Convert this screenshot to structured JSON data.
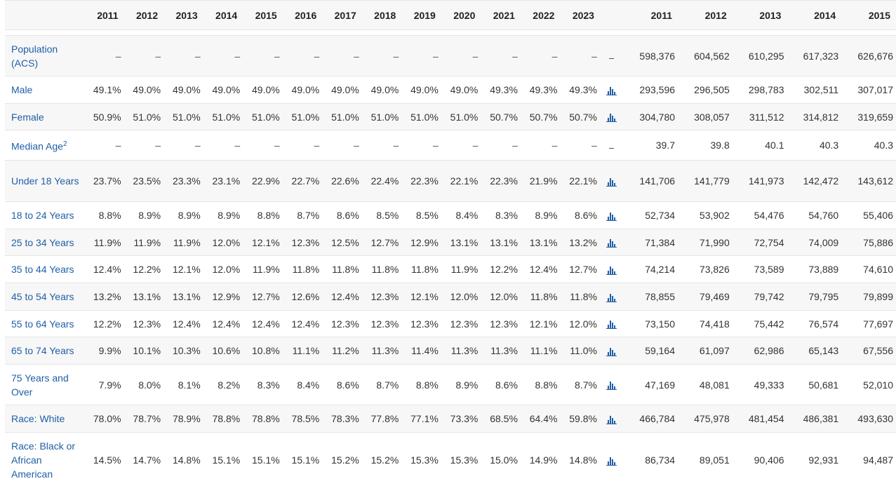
{
  "header": {
    "pct_years": [
      "2011",
      "2012",
      "2013",
      "2014",
      "2015",
      "2016",
      "2017",
      "2018",
      "2019",
      "2020",
      "2021",
      "2022",
      "2023"
    ],
    "abs_years": [
      "2011",
      "2012",
      "2013",
      "2014",
      "2015"
    ]
  },
  "rows": [
    {
      "label": "Population (ACS)",
      "sup": "",
      "pct": [
        "–",
        "–",
        "–",
        "–",
        "–",
        "–",
        "–",
        "–",
        "–",
        "–",
        "–",
        "–",
        "–"
      ],
      "chart": false,
      "abs": [
        "598,376",
        "604,562",
        "610,295",
        "617,323",
        "626,676"
      ],
      "h": 58
    },
    {
      "label": "Male",
      "sup": "",
      "pct": [
        "49.1%",
        "49.0%",
        "49.0%",
        "49.0%",
        "49.0%",
        "49.0%",
        "49.0%",
        "49.0%",
        "49.0%",
        "49.0%",
        "49.3%",
        "49.3%",
        "49.3%"
      ],
      "chart": true,
      "abs": [
        "293,596",
        "296,505",
        "298,783",
        "302,511",
        "307,017"
      ],
      "h": 39
    },
    {
      "label": "Female",
      "sup": "",
      "pct": [
        "50.9%",
        "51.0%",
        "51.0%",
        "51.0%",
        "51.0%",
        "51.0%",
        "51.0%",
        "51.0%",
        "51.0%",
        "51.0%",
        "50.7%",
        "50.7%",
        "50.7%"
      ],
      "chart": true,
      "abs": [
        "304,780",
        "308,057",
        "311,512",
        "314,812",
        "319,659"
      ],
      "h": 38
    },
    {
      "label": "Median Age",
      "sup": "2",
      "pct": [
        "–",
        "–",
        "–",
        "–",
        "–",
        "–",
        "–",
        "–",
        "–",
        "–",
        "–",
        "–",
        "–"
      ],
      "chart": false,
      "abs": [
        "39.7",
        "39.8",
        "40.1",
        "40.3",
        "40.3"
      ],
      "h": 43
    },
    {
      "label": "Under 18 Years",
      "sup": "",
      "pct": [
        "23.7%",
        "23.5%",
        "23.3%",
        "23.1%",
        "22.9%",
        "22.7%",
        "22.6%",
        "22.4%",
        "22.3%",
        "22.1%",
        "22.3%",
        "21.9%",
        "22.1%"
      ],
      "chart": true,
      "abs": [
        "141,706",
        "141,779",
        "141,973",
        "142,472",
        "143,612"
      ],
      "h": 59
    },
    {
      "label": "18 to 24 Years",
      "sup": "",
      "pct": [
        "8.8%",
        "8.9%",
        "8.9%",
        "8.9%",
        "8.8%",
        "8.7%",
        "8.6%",
        "8.5%",
        "8.5%",
        "8.4%",
        "8.3%",
        "8.9%",
        "8.6%"
      ],
      "chart": true,
      "abs": [
        "52,734",
        "53,902",
        "54,476",
        "54,760",
        "55,406"
      ],
      "h": 39
    },
    {
      "label": "25 to 34 Years",
      "sup": "",
      "pct": [
        "11.9%",
        "11.9%",
        "11.9%",
        "12.0%",
        "12.1%",
        "12.3%",
        "12.5%",
        "12.7%",
        "12.9%",
        "13.1%",
        "13.1%",
        "13.1%",
        "13.2%"
      ],
      "chart": true,
      "abs": [
        "71,384",
        "71,990",
        "72,754",
        "74,009",
        "75,886"
      ],
      "h": 38
    },
    {
      "label": "35 to 44 Years",
      "sup": "",
      "pct": [
        "12.4%",
        "12.2%",
        "12.1%",
        "12.0%",
        "11.9%",
        "11.8%",
        "11.8%",
        "11.8%",
        "11.8%",
        "11.9%",
        "12.2%",
        "12.4%",
        "12.7%"
      ],
      "chart": true,
      "abs": [
        "74,214",
        "73,826",
        "73,589",
        "73,889",
        "74,610"
      ],
      "h": 39
    },
    {
      "label": "45 to 54 Years",
      "sup": "",
      "pct": [
        "13.2%",
        "13.1%",
        "13.1%",
        "12.9%",
        "12.7%",
        "12.6%",
        "12.4%",
        "12.3%",
        "12.1%",
        "12.0%",
        "12.0%",
        "11.8%",
        "11.8%"
      ],
      "chart": true,
      "abs": [
        "78,855",
        "79,469",
        "79,742",
        "79,795",
        "79,899"
      ],
      "h": 39
    },
    {
      "label": "55 to 64 Years",
      "sup": "",
      "pct": [
        "12.2%",
        "12.3%",
        "12.4%",
        "12.4%",
        "12.4%",
        "12.4%",
        "12.3%",
        "12.3%",
        "12.3%",
        "12.3%",
        "12.3%",
        "12.1%",
        "12.0%"
      ],
      "chart": true,
      "abs": [
        "73,150",
        "74,418",
        "75,442",
        "76,574",
        "77,697"
      ],
      "h": 38
    },
    {
      "label": "65 to 74 Years",
      "sup": "",
      "pct": [
        "9.9%",
        "10.1%",
        "10.3%",
        "10.6%",
        "10.8%",
        "11.1%",
        "11.2%",
        "11.3%",
        "11.4%",
        "11.3%",
        "11.3%",
        "11.1%",
        "11.0%"
      ],
      "chart": true,
      "abs": [
        "59,164",
        "61,097",
        "62,986",
        "65,143",
        "67,556"
      ],
      "h": 39
    },
    {
      "label": "75 Years and Over",
      "sup": "",
      "pct": [
        "7.9%",
        "8.0%",
        "8.1%",
        "8.2%",
        "8.3%",
        "8.4%",
        "8.6%",
        "8.7%",
        "8.8%",
        "8.9%",
        "8.6%",
        "8.8%",
        "8.7%"
      ],
      "chart": true,
      "abs": [
        "47,169",
        "48,081",
        "49,333",
        "50,681",
        "52,010"
      ],
      "h": 58
    },
    {
      "label": "Race: White",
      "sup": "",
      "pct": [
        "78.0%",
        "78.7%",
        "78.9%",
        "78.8%",
        "78.8%",
        "78.5%",
        "78.3%",
        "77.8%",
        "77.1%",
        "73.3%",
        "68.5%",
        "64.4%",
        "59.8%"
      ],
      "chart": true,
      "abs": [
        "466,784",
        "475,978",
        "481,454",
        "486,381",
        "493,630"
      ],
      "h": 39
    },
    {
      "label": "Race: Black or African American",
      "sup": "",
      "pct": [
        "14.5%",
        "14.7%",
        "14.8%",
        "15.1%",
        "15.1%",
        "15.1%",
        "15.2%",
        "15.2%",
        "15.3%",
        "15.3%",
        "15.0%",
        "14.9%",
        "14.8%"
      ],
      "chart": true,
      "abs": [
        "86,734",
        "89,051",
        "90,406",
        "92,931",
        "94,487"
      ],
      "h": 78
    }
  ],
  "colors": {
    "link": "#1f5fa6",
    "row_alt": "#f7f7f7",
    "border": "#e4e4e4"
  }
}
